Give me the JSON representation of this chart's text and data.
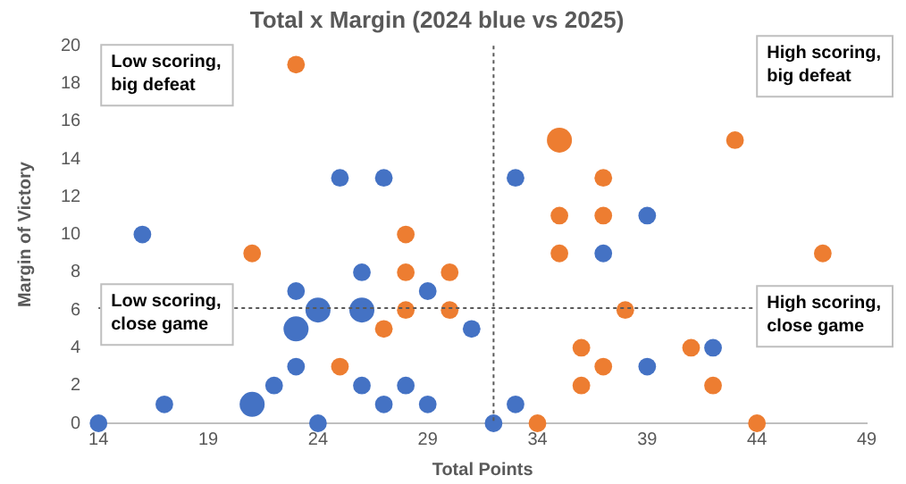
{
  "chart_data": {
    "type": "bubble",
    "title": "Total x Margin (2024 blue vs 2025)",
    "xlabel": "Total Points",
    "ylabel": "Margin of Victory",
    "xlim": [
      14,
      49
    ],
    "xticks": [
      14,
      19,
      24,
      29,
      34,
      39,
      44,
      49
    ],
    "ylim": [
      0,
      20
    ],
    "yticks": [
      0,
      2,
      4,
      6,
      8,
      10,
      12,
      14,
      16,
      18,
      20
    ],
    "grid": false,
    "legend": false,
    "series": [
      {
        "color": "#4472c4",
        "x": [
          14,
          16,
          17,
          21,
          22,
          23,
          23,
          23,
          24,
          24,
          25,
          26,
          26,
          26,
          27,
          27,
          28,
          29,
          29,
          31,
          32,
          33,
          33,
          37,
          39,
          39,
          42
        ],
        "values": [
          0,
          10,
          1,
          1,
          2,
          3,
          5,
          7,
          6,
          0,
          13,
          6,
          8,
          2,
          13,
          1,
          2,
          7,
          1,
          5,
          0,
          13,
          1,
          9,
          11,
          3,
          4
        ],
        "sizes": [
          0.5,
          0.5,
          0.5,
          1,
          0.5,
          0.5,
          1,
          0.5,
          1,
          0.5,
          0.5,
          1,
          0.5,
          0.5,
          0.5,
          0.5,
          0.5,
          0.5,
          0.5,
          0.5,
          0.5,
          0.5,
          0.5,
          0.5,
          0.5,
          0.5,
          0.5
        ]
      },
      {
        "color": "#ed7d31",
        "x": [
          21,
          23,
          25,
          27,
          28,
          28,
          28,
          30,
          30,
          34,
          35,
          35,
          35,
          36,
          36,
          37,
          37,
          37,
          38,
          41,
          42,
          43,
          44,
          47
        ],
        "values": [
          9,
          19,
          3,
          5,
          10,
          8,
          6,
          8,
          6,
          0,
          15,
          11,
          9,
          4,
          2,
          13,
          11,
          3,
          6,
          4,
          2,
          15,
          0,
          9
        ],
        "sizes": [
          0.5,
          0.5,
          0.5,
          0.5,
          0.5,
          0.5,
          0.5,
          0.5,
          0.5,
          0.5,
          1,
          0.5,
          0.5,
          0.5,
          0.5,
          0.5,
          0.5,
          0.5,
          0.5,
          0.5,
          0.5,
          0.5,
          0.5,
          0.5
        ]
      }
    ],
    "ref_lines": [
      {
        "axis": "x",
        "value": 32,
        "color": "#595959",
        "line_style": "dotted"
      },
      {
        "axis": "y",
        "value": 6.1,
        "color": "#595959",
        "line_style": "dotted"
      }
    ],
    "annotations": [
      "Low scoring, big defeat",
      "High scoring, big defeat",
      "Low scoring, close game",
      "High scoring, close game"
    ]
  }
}
